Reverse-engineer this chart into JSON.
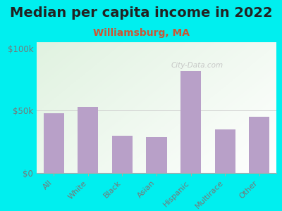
{
  "title": "Median per capita income in 2022",
  "subtitle": "Williamsburg, MA",
  "categories": [
    "All",
    "White",
    "Black",
    "Asian",
    "Hispanic",
    "Multirace",
    "Other"
  ],
  "values": [
    48000,
    53000,
    30000,
    29000,
    82000,
    35000,
    45000
  ],
  "bar_color": "#b8a0c8",
  "background_outer": "#00EFEF",
  "yticks": [
    0,
    50000,
    100000
  ],
  "ytick_labels": [
    "$0",
    "$50k",
    "$100k"
  ],
  "ylim": [
    0,
    105000
  ],
  "title_fontsize": 14,
  "subtitle_fontsize": 10,
  "subtitle_color": "#cc5533",
  "title_color": "#222222",
  "tick_label_color": "#777777",
  "watermark": "City-Data.com",
  "watermark_color": "#c0c0c0"
}
